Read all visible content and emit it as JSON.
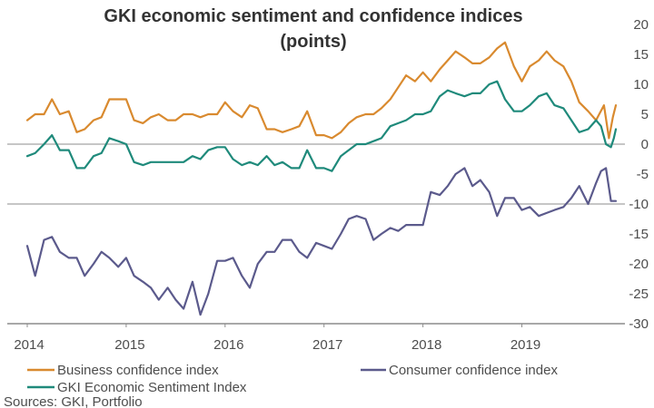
{
  "chart_data": {
    "type": "line",
    "title_lines": [
      "GKI economic sentiment and confidence indices",
      "(points)"
    ],
    "x_tick_labels": [
      "2014",
      "2015",
      "2016",
      "2017",
      "2018",
      "2019"
    ],
    "x_range": [
      2014,
      2019.95
    ],
    "y_ticks": [
      20,
      15,
      10,
      5,
      0,
      -5,
      -10,
      -15,
      -20,
      -25,
      -30
    ],
    "y_tick_labels": [
      "20",
      "15",
      "10",
      "5",
      "0",
      "-5",
      "-10",
      "-15",
      "-20",
      "-25",
      "-30"
    ],
    "ylim": [
      -30,
      20
    ],
    "xlabel": "",
    "ylabel": "",
    "legend_position": "bottom",
    "series": [
      {
        "name": "Business confidence index",
        "color": "#d98a2f",
        "values": [
          [
            2014.0,
            4
          ],
          [
            2014.08,
            5
          ],
          [
            2014.17,
            5
          ],
          [
            2014.25,
            7.5
          ],
          [
            2014.33,
            5
          ],
          [
            2014.42,
            5.5
          ],
          [
            2014.5,
            2
          ],
          [
            2014.58,
            2.5
          ],
          [
            2014.67,
            4
          ],
          [
            2014.75,
            4.5
          ],
          [
            2014.83,
            7.5
          ],
          [
            2014.92,
            7.5
          ],
          [
            2015.0,
            7.5
          ],
          [
            2015.08,
            4
          ],
          [
            2015.17,
            3.5
          ],
          [
            2015.25,
            4.5
          ],
          [
            2015.33,
            5
          ],
          [
            2015.42,
            4
          ],
          [
            2015.5,
            4
          ],
          [
            2015.58,
            5
          ],
          [
            2015.67,
            5
          ],
          [
            2015.75,
            4.5
          ],
          [
            2015.83,
            5
          ],
          [
            2015.92,
            5
          ],
          [
            2016.0,
            7
          ],
          [
            2016.08,
            5.5
          ],
          [
            2016.17,
            4.5
          ],
          [
            2016.25,
            6.5
          ],
          [
            2016.33,
            6
          ],
          [
            2016.42,
            2.5
          ],
          [
            2016.5,
            2.5
          ],
          [
            2016.58,
            2
          ],
          [
            2016.67,
            2.5
          ],
          [
            2016.75,
            3
          ],
          [
            2016.83,
            5.5
          ],
          [
            2016.92,
            1.5
          ],
          [
            2017.0,
            1.5
          ],
          [
            2017.08,
            1
          ],
          [
            2017.17,
            2
          ],
          [
            2017.25,
            3.5
          ],
          [
            2017.33,
            4.5
          ],
          [
            2017.42,
            5
          ],
          [
            2017.5,
            5
          ],
          [
            2017.58,
            6
          ],
          [
            2017.67,
            7.5
          ],
          [
            2017.75,
            9.5
          ],
          [
            2017.83,
            11.5
          ],
          [
            2017.92,
            10.5
          ],
          [
            2018.0,
            12
          ],
          [
            2018.08,
            10.5
          ],
          [
            2018.17,
            12.5
          ],
          [
            2018.25,
            14
          ],
          [
            2018.33,
            15.5
          ],
          [
            2018.42,
            14.5
          ],
          [
            2018.5,
            13.5
          ],
          [
            2018.58,
            13.5
          ],
          [
            2018.67,
            14.5
          ],
          [
            2018.75,
            16
          ],
          [
            2018.83,
            17
          ],
          [
            2018.92,
            13
          ],
          [
            2019.0,
            10.5
          ],
          [
            2019.08,
            13
          ],
          [
            2019.17,
            14
          ],
          [
            2019.25,
            15.5
          ],
          [
            2019.33,
            14
          ],
          [
            2019.42,
            13
          ],
          [
            2019.5,
            10.5
          ],
          [
            2019.58,
            7
          ],
          [
            2019.67,
            5.5
          ],
          [
            2019.75,
            4
          ],
          [
            2019.83,
            6.5
          ],
          [
            2019.88,
            1
          ],
          [
            2019.92,
            4.5
          ],
          [
            2019.95,
            6.5
          ]
        ]
      },
      {
        "name": "GKI Economic Sentiment Index",
        "color": "#1f8a7b",
        "values": [
          [
            2014.0,
            -2
          ],
          [
            2014.08,
            -1.5
          ],
          [
            2014.17,
            0
          ],
          [
            2014.25,
            1.5
          ],
          [
            2014.33,
            -1
          ],
          [
            2014.42,
            -1
          ],
          [
            2014.5,
            -4
          ],
          [
            2014.58,
            -4
          ],
          [
            2014.67,
            -2
          ],
          [
            2014.75,
            -1.5
          ],
          [
            2014.83,
            1
          ],
          [
            2014.92,
            0.5
          ],
          [
            2015.0,
            0
          ],
          [
            2015.08,
            -3
          ],
          [
            2015.17,
            -3.5
          ],
          [
            2015.25,
            -3
          ],
          [
            2015.33,
            -3
          ],
          [
            2015.42,
            -3
          ],
          [
            2015.5,
            -3
          ],
          [
            2015.58,
            -3
          ],
          [
            2015.67,
            -2
          ],
          [
            2015.75,
            -2.5
          ],
          [
            2015.83,
            -1
          ],
          [
            2015.92,
            -0.5
          ],
          [
            2016.0,
            -0.5
          ],
          [
            2016.08,
            -2.5
          ],
          [
            2016.17,
            -3.5
          ],
          [
            2016.25,
            -3
          ],
          [
            2016.33,
            -3.5
          ],
          [
            2016.42,
            -2
          ],
          [
            2016.5,
            -3.5
          ],
          [
            2016.58,
            -3
          ],
          [
            2016.67,
            -4
          ],
          [
            2016.75,
            -4
          ],
          [
            2016.83,
            -1
          ],
          [
            2016.92,
            -4
          ],
          [
            2017.0,
            -4
          ],
          [
            2017.08,
            -4.5
          ],
          [
            2017.17,
            -2
          ],
          [
            2017.25,
            -1
          ],
          [
            2017.33,
            0
          ],
          [
            2017.42,
            0
          ],
          [
            2017.5,
            0.5
          ],
          [
            2017.58,
            1
          ],
          [
            2017.67,
            3
          ],
          [
            2017.75,
            3.5
          ],
          [
            2017.83,
            4
          ],
          [
            2017.92,
            5
          ],
          [
            2018.0,
            5
          ],
          [
            2018.08,
            5.5
          ],
          [
            2018.17,
            8
          ],
          [
            2018.25,
            9
          ],
          [
            2018.33,
            8.5
          ],
          [
            2018.42,
            8
          ],
          [
            2018.5,
            8.5
          ],
          [
            2018.58,
            8.5
          ],
          [
            2018.67,
            10
          ],
          [
            2018.75,
            10.5
          ],
          [
            2018.83,
            7.5
          ],
          [
            2018.92,
            5.5
          ],
          [
            2019.0,
            5.5
          ],
          [
            2019.08,
            6.5
          ],
          [
            2019.17,
            8
          ],
          [
            2019.25,
            8.5
          ],
          [
            2019.33,
            6.5
          ],
          [
            2019.42,
            6
          ],
          [
            2019.5,
            4
          ],
          [
            2019.58,
            2
          ],
          [
            2019.67,
            2.5
          ],
          [
            2019.75,
            4
          ],
          [
            2019.8,
            3
          ],
          [
            2019.85,
            0
          ],
          [
            2019.9,
            -0.5
          ],
          [
            2019.93,
            1
          ],
          [
            2019.95,
            2.5
          ]
        ]
      },
      {
        "name": "Consumer confidence index",
        "color": "#5b5a8c",
        "values": [
          [
            2014.0,
            -17
          ],
          [
            2014.08,
            -22
          ],
          [
            2014.17,
            -16
          ],
          [
            2014.25,
            -15.5
          ],
          [
            2014.33,
            -18
          ],
          [
            2014.42,
            -19
          ],
          [
            2014.5,
            -19
          ],
          [
            2014.58,
            -22
          ],
          [
            2014.67,
            -20
          ],
          [
            2014.75,
            -18
          ],
          [
            2014.83,
            -19
          ],
          [
            2014.92,
            -20.5
          ],
          [
            2015.0,
            -19
          ],
          [
            2015.08,
            -22
          ],
          [
            2015.17,
            -23
          ],
          [
            2015.25,
            -24
          ],
          [
            2015.33,
            -26
          ],
          [
            2015.42,
            -24
          ],
          [
            2015.5,
            -26
          ],
          [
            2015.58,
            -27.5
          ],
          [
            2015.67,
            -23
          ],
          [
            2015.75,
            -28.5
          ],
          [
            2015.83,
            -25
          ],
          [
            2015.92,
            -19.5
          ],
          [
            2016.0,
            -19.5
          ],
          [
            2016.08,
            -19
          ],
          [
            2016.17,
            -22
          ],
          [
            2016.25,
            -24
          ],
          [
            2016.33,
            -20
          ],
          [
            2016.42,
            -18
          ],
          [
            2016.5,
            -18
          ],
          [
            2016.58,
            -16
          ],
          [
            2016.67,
            -16
          ],
          [
            2016.75,
            -18
          ],
          [
            2016.83,
            -19
          ],
          [
            2016.92,
            -16.5
          ],
          [
            2017.0,
            -17
          ],
          [
            2017.08,
            -17.5
          ],
          [
            2017.17,
            -15
          ],
          [
            2017.25,
            -12.5
          ],
          [
            2017.33,
            -12
          ],
          [
            2017.42,
            -12.5
          ],
          [
            2017.5,
            -16
          ],
          [
            2017.58,
            -15
          ],
          [
            2017.67,
            -14
          ],
          [
            2017.75,
            -14.5
          ],
          [
            2017.83,
            -13.5
          ],
          [
            2017.92,
            -13.5
          ],
          [
            2018.0,
            -13.5
          ],
          [
            2018.08,
            -8
          ],
          [
            2018.17,
            -8.5
          ],
          [
            2018.25,
            -7
          ],
          [
            2018.33,
            -5
          ],
          [
            2018.42,
            -4
          ],
          [
            2018.5,
            -7
          ],
          [
            2018.58,
            -6
          ],
          [
            2018.67,
            -8
          ],
          [
            2018.75,
            -12
          ],
          [
            2018.83,
            -9
          ],
          [
            2018.92,
            -9
          ],
          [
            2019.0,
            -11
          ],
          [
            2019.08,
            -10.5
          ],
          [
            2019.17,
            -12
          ],
          [
            2019.25,
            -11.5
          ],
          [
            2019.33,
            -11
          ],
          [
            2019.42,
            -10.5
          ],
          [
            2019.5,
            -9
          ],
          [
            2019.58,
            -7
          ],
          [
            2019.67,
            -10
          ],
          [
            2019.75,
            -6.5
          ],
          [
            2019.8,
            -4.5
          ],
          [
            2019.85,
            -4
          ],
          [
            2019.9,
            -9.5
          ],
          [
            2019.95,
            -9.5
          ]
        ]
      }
    ],
    "legend": [
      {
        "name": "Business confidence index",
        "color": "#d98a2f"
      },
      {
        "name": "Consumer confidence index",
        "color": "#5b5a8c"
      },
      {
        "name": "GKI Economic Sentiment Index",
        "color": "#1f8a7b"
      }
    ],
    "source": "Sources: GKI, Portfolio",
    "grid": false,
    "reference_lines": [
      0,
      -10
    ],
    "reference_line_color": "#b3b3b3",
    "axis_color": "#8c8c8c"
  }
}
